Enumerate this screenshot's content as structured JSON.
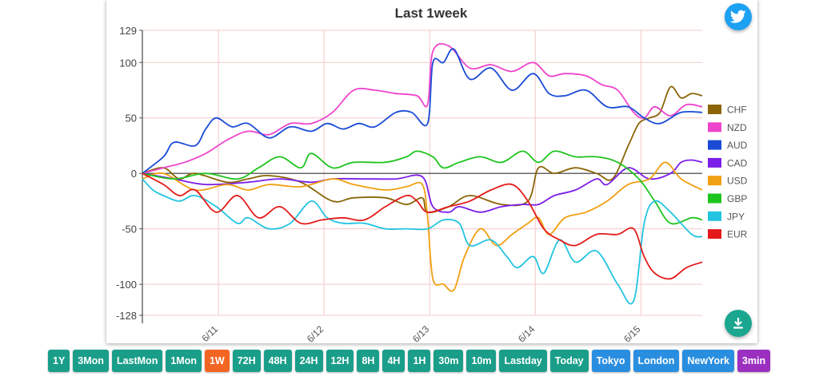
{
  "chart_data": {
    "type": "line",
    "title": "Last 1week",
    "xlabel": "",
    "ylabel": "",
    "ylim": [
      -128,
      129
    ],
    "yticks": [
      129,
      100,
      50,
      0,
      -50,
      -100,
      -128
    ],
    "xlim": [
      0,
      5.3
    ],
    "xticks": [
      {
        "x": 0.72,
        "label": "6/11"
      },
      {
        "x": 1.72,
        "label": "6/12"
      },
      {
        "x": 2.72,
        "label": "6/13"
      },
      {
        "x": 3.72,
        "label": "6/14"
      },
      {
        "x": 4.72,
        "label": "6/15"
      }
    ],
    "x_unit": "days",
    "grid": true,
    "legend": "right",
    "zero_line": true,
    "series": [
      {
        "name": "CHF",
        "color": "#8b6508",
        "points": [
          [
            0,
            0
          ],
          [
            0.2,
            5
          ],
          [
            0.35,
            -5
          ],
          [
            0.5,
            0
          ],
          [
            0.8,
            -8
          ],
          [
            1.0,
            -5
          ],
          [
            1.2,
            -2
          ],
          [
            1.5,
            -8
          ],
          [
            1.8,
            -25
          ],
          [
            2.0,
            -22
          ],
          [
            2.3,
            -22
          ],
          [
            2.5,
            -28
          ],
          [
            2.65,
            -22
          ],
          [
            2.7,
            -35
          ],
          [
            2.9,
            -30
          ],
          [
            3.1,
            -20
          ],
          [
            3.4,
            -28
          ],
          [
            3.65,
            -25
          ],
          [
            3.75,
            5
          ],
          [
            3.9,
            0
          ],
          [
            4.1,
            5
          ],
          [
            4.3,
            0
          ],
          [
            4.45,
            -5
          ],
          [
            4.6,
            25
          ],
          [
            4.7,
            45
          ],
          [
            4.8,
            50
          ],
          [
            4.9,
            55
          ],
          [
            5.0,
            78
          ],
          [
            5.1,
            68
          ],
          [
            5.2,
            72
          ],
          [
            5.3,
            70
          ]
        ]
      },
      {
        "name": "NZD",
        "color": "#ee44cc",
        "points": [
          [
            0,
            0
          ],
          [
            0.2,
            5
          ],
          [
            0.4,
            10
          ],
          [
            0.6,
            18
          ],
          [
            0.8,
            30
          ],
          [
            1.0,
            38
          ],
          [
            1.2,
            35
          ],
          [
            1.4,
            45
          ],
          [
            1.6,
            45
          ],
          [
            1.8,
            55
          ],
          [
            2.0,
            75
          ],
          [
            2.2,
            75
          ],
          [
            2.4,
            72
          ],
          [
            2.6,
            70
          ],
          [
            2.7,
            62
          ],
          [
            2.75,
            110
          ],
          [
            2.9,
            115
          ],
          [
            3.1,
            95
          ],
          [
            3.3,
            98
          ],
          [
            3.5,
            92
          ],
          [
            3.7,
            100
          ],
          [
            3.85,
            88
          ],
          [
            4.0,
            90
          ],
          [
            4.2,
            88
          ],
          [
            4.35,
            80
          ],
          [
            4.5,
            75
          ],
          [
            4.65,
            55
          ],
          [
            4.75,
            50
          ],
          [
            4.85,
            60
          ],
          [
            5.0,
            52
          ],
          [
            5.15,
            62
          ],
          [
            5.3,
            60
          ]
        ]
      },
      {
        "name": "AUD",
        "color": "#1a4ad6",
        "points": [
          [
            0,
            0
          ],
          [
            0.2,
            15
          ],
          [
            0.3,
            28
          ],
          [
            0.5,
            25
          ],
          [
            0.6,
            40
          ],
          [
            0.7,
            50
          ],
          [
            0.85,
            42
          ],
          [
            1.0,
            45
          ],
          [
            1.2,
            32
          ],
          [
            1.4,
            42
          ],
          [
            1.6,
            38
          ],
          [
            1.75,
            45
          ],
          [
            1.9,
            40
          ],
          [
            2.05,
            45
          ],
          [
            2.2,
            42
          ],
          [
            2.4,
            55
          ],
          [
            2.55,
            55
          ],
          [
            2.7,
            45
          ],
          [
            2.75,
            100
          ],
          [
            2.85,
            100
          ],
          [
            2.95,
            112
          ],
          [
            3.1,
            85
          ],
          [
            3.3,
            95
          ],
          [
            3.5,
            75
          ],
          [
            3.7,
            90
          ],
          [
            3.85,
            72
          ],
          [
            4.0,
            70
          ],
          [
            4.2,
            75
          ],
          [
            4.4,
            60
          ],
          [
            4.6,
            60
          ],
          [
            4.75,
            50
          ],
          [
            4.9,
            45
          ],
          [
            5.1,
            55
          ],
          [
            5.3,
            55
          ]
        ]
      },
      {
        "name": "CAD",
        "color": "#7b1ee8",
        "points": [
          [
            0,
            0
          ],
          [
            0.3,
            -5
          ],
          [
            0.6,
            -10
          ],
          [
            1.0,
            -8
          ],
          [
            1.3,
            -5
          ],
          [
            1.6,
            -8
          ],
          [
            1.8,
            -5
          ],
          [
            2.1,
            -5
          ],
          [
            2.4,
            -5
          ],
          [
            2.65,
            -3
          ],
          [
            2.75,
            -30
          ],
          [
            2.9,
            -35
          ],
          [
            3.0,
            -30
          ],
          [
            3.2,
            -35
          ],
          [
            3.4,
            -30
          ],
          [
            3.6,
            -28
          ],
          [
            3.75,
            -28
          ],
          [
            3.9,
            -20
          ],
          [
            4.1,
            -15
          ],
          [
            4.3,
            -5
          ],
          [
            4.4,
            -10
          ],
          [
            4.6,
            5
          ],
          [
            4.8,
            -5
          ],
          [
            5.0,
            0
          ],
          [
            5.1,
            10
          ],
          [
            5.2,
            12
          ],
          [
            5.3,
            10
          ]
        ]
      },
      {
        "name": "USD",
        "color": "#f0a010",
        "points": [
          [
            0,
            -5
          ],
          [
            0.2,
            0
          ],
          [
            0.5,
            -15
          ],
          [
            0.8,
            -10
          ],
          [
            1.0,
            -15
          ],
          [
            1.2,
            -10
          ],
          [
            1.5,
            -12
          ],
          [
            1.8,
            -5
          ],
          [
            2.0,
            -10
          ],
          [
            2.3,
            -15
          ],
          [
            2.5,
            -12
          ],
          [
            2.65,
            -10
          ],
          [
            2.7,
            -40
          ],
          [
            2.75,
            -95
          ],
          [
            2.85,
            -100
          ],
          [
            2.95,
            -105
          ],
          [
            3.05,
            -75
          ],
          [
            3.2,
            -50
          ],
          [
            3.35,
            -65
          ],
          [
            3.5,
            -55
          ],
          [
            3.65,
            -45
          ],
          [
            3.75,
            -40
          ],
          [
            3.85,
            -55
          ],
          [
            4.0,
            -40
          ],
          [
            4.2,
            -35
          ],
          [
            4.4,
            -25
          ],
          [
            4.6,
            -10
          ],
          [
            4.8,
            -5
          ],
          [
            4.95,
            10
          ],
          [
            5.1,
            -5
          ],
          [
            5.3,
            -15
          ]
        ]
      },
      {
        "name": "GBP",
        "color": "#1ec41e",
        "points": [
          [
            0,
            0
          ],
          [
            0.3,
            -5
          ],
          [
            0.6,
            0
          ],
          [
            0.9,
            -5
          ],
          [
            1.1,
            5
          ],
          [
            1.3,
            15
          ],
          [
            1.5,
            5
          ],
          [
            1.6,
            18
          ],
          [
            1.8,
            5
          ],
          [
            2.0,
            10
          ],
          [
            2.3,
            10
          ],
          [
            2.5,
            15
          ],
          [
            2.6,
            20
          ],
          [
            2.75,
            15
          ],
          [
            2.85,
            5
          ],
          [
            3.0,
            10
          ],
          [
            3.2,
            15
          ],
          [
            3.4,
            10
          ],
          [
            3.6,
            20
          ],
          [
            3.75,
            10
          ],
          [
            3.9,
            20
          ],
          [
            4.1,
            15
          ],
          [
            4.3,
            15
          ],
          [
            4.5,
            10
          ],
          [
            4.7,
            -5
          ],
          [
            4.85,
            -25
          ],
          [
            5.0,
            -45
          ],
          [
            5.2,
            -40
          ],
          [
            5.3,
            -42
          ]
        ]
      },
      {
        "name": "JPY",
        "color": "#22c4e0",
        "points": [
          [
            0,
            -5
          ],
          [
            0.1,
            -15
          ],
          [
            0.2,
            -20
          ],
          [
            0.35,
            -25
          ],
          [
            0.5,
            -20
          ],
          [
            0.7,
            -30
          ],
          [
            0.9,
            -45
          ],
          [
            1.0,
            -40
          ],
          [
            1.2,
            -50
          ],
          [
            1.4,
            -45
          ],
          [
            1.6,
            -25
          ],
          [
            1.75,
            -40
          ],
          [
            1.9,
            -45
          ],
          [
            2.1,
            -45
          ],
          [
            2.3,
            -50
          ],
          [
            2.5,
            -50
          ],
          [
            2.7,
            -50
          ],
          [
            2.85,
            -42
          ],
          [
            3.0,
            -45
          ],
          [
            3.1,
            -65
          ],
          [
            3.3,
            -60
          ],
          [
            3.45,
            -75
          ],
          [
            3.55,
            -85
          ],
          [
            3.7,
            -75
          ],
          [
            3.8,
            -90
          ],
          [
            3.95,
            -60
          ],
          [
            4.1,
            -80
          ],
          [
            4.3,
            -70
          ],
          [
            4.5,
            -100
          ],
          [
            4.65,
            -115
          ],
          [
            4.75,
            -45
          ],
          [
            4.85,
            -25
          ],
          [
            5.0,
            -35
          ],
          [
            5.2,
            -55
          ],
          [
            5.3,
            -57
          ]
        ]
      },
      {
        "name": "EUR",
        "color": "#e41a1a",
        "points": [
          [
            0,
            0
          ],
          [
            0.2,
            -10
          ],
          [
            0.35,
            -20
          ],
          [
            0.5,
            -15
          ],
          [
            0.7,
            -35
          ],
          [
            0.9,
            -20
          ],
          [
            1.1,
            -40
          ],
          [
            1.3,
            -30
          ],
          [
            1.5,
            -45
          ],
          [
            1.7,
            -42
          ],
          [
            1.9,
            -40
          ],
          [
            2.1,
            -42
          ],
          [
            2.3,
            -30
          ],
          [
            2.5,
            -20
          ],
          [
            2.6,
            -25
          ],
          [
            2.7,
            -35
          ],
          [
            2.9,
            -30
          ],
          [
            3.1,
            -25
          ],
          [
            3.3,
            -15
          ],
          [
            3.5,
            -10
          ],
          [
            3.65,
            -25
          ],
          [
            3.8,
            -50
          ],
          [
            3.95,
            -60
          ],
          [
            4.1,
            -65
          ],
          [
            4.3,
            -55
          ],
          [
            4.5,
            -55
          ],
          [
            4.65,
            -50
          ],
          [
            4.75,
            -75
          ],
          [
            4.85,
            -90
          ],
          [
            5.0,
            -95
          ],
          [
            5.15,
            -85
          ],
          [
            5.3,
            -80
          ]
        ]
      }
    ]
  },
  "buttons": [
    {
      "label": "1Y",
      "color": "#1a9e8a"
    },
    {
      "label": "3Mon",
      "color": "#1a9e8a"
    },
    {
      "label": "LastMon",
      "color": "#1a9e8a"
    },
    {
      "label": "1Mon",
      "color": "#1a9e8a"
    },
    {
      "label": "1W",
      "color": "#f26522"
    },
    {
      "label": "72H",
      "color": "#1a9e8a"
    },
    {
      "label": "48H",
      "color": "#1a9e8a"
    },
    {
      "label": "24H",
      "color": "#1a9e8a"
    },
    {
      "label": "12H",
      "color": "#1a9e8a"
    },
    {
      "label": "8H",
      "color": "#1a9e8a"
    },
    {
      "label": "4H",
      "color": "#1a9e8a"
    },
    {
      "label": "1H",
      "color": "#1a9e8a"
    },
    {
      "label": "30m",
      "color": "#1a9e8a"
    },
    {
      "label": "10m",
      "color": "#1a9e8a"
    },
    {
      "label": "Lastday",
      "color": "#1a9e8a"
    },
    {
      "label": "Today",
      "color": "#1a9e8a"
    },
    {
      "label": "Tokyo",
      "color": "#2a8ee0"
    },
    {
      "label": "London",
      "color": "#2a8ee0"
    },
    {
      "label": "NewYork",
      "color": "#2a8ee0"
    },
    {
      "label": "3min",
      "color": "#9b30c0"
    }
  ],
  "icons": {
    "share": "twitter-icon",
    "download": "download-icon"
  }
}
